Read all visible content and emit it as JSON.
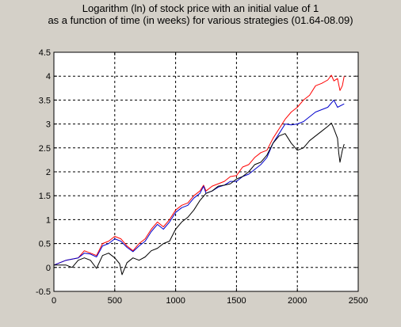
{
  "titles": {
    "line1": "Logarithm (ln) of stock price with an initial value of 1",
    "line2": "as a function of time (in weeks) for various strategies (01.64-08.09)"
  },
  "chart_data": {
    "type": "line",
    "title": "Logarithm (ln) of stock price with an initial value of 1 as a function of time (in weeks) for various strategies (01.64-08.09)",
    "xlabel": "",
    "ylabel": "",
    "xlim": [
      0,
      2500
    ],
    "ylim": [
      -0.5,
      4.5
    ],
    "xticks": [
      0,
      500,
      1000,
      1500,
      2000,
      2500
    ],
    "yticks": [
      -0.5,
      0,
      0.5,
      1,
      1.5,
      2,
      2.5,
      3,
      3.5,
      4,
      4.5
    ],
    "grid": true,
    "legend": "none",
    "background": "#ffffff",
    "frame_background": "#d4d0c8",
    "series": [
      {
        "color": "#ff0000",
        "x": [
          0,
          100,
          200,
          250,
          300,
          350,
          400,
          450,
          500,
          550,
          600,
          650,
          700,
          750,
          800,
          850,
          900,
          950,
          1000,
          1050,
          1100,
          1150,
          1200,
          1230,
          1250,
          1300,
          1350,
          1400,
          1450,
          1500,
          1550,
          1600,
          1650,
          1700,
          1750,
          1800,
          1850,
          1900,
          1950,
          2000,
          2050,
          2100,
          2150,
          2200,
          2250,
          2280,
          2300,
          2330,
          2350,
          2370,
          2385
        ],
        "y": [
          0.05,
          0.15,
          0.2,
          0.35,
          0.3,
          0.25,
          0.5,
          0.55,
          0.65,
          0.6,
          0.45,
          0.35,
          0.5,
          0.6,
          0.8,
          0.95,
          0.85,
          1.0,
          1.2,
          1.3,
          1.35,
          1.5,
          1.6,
          1.72,
          1.6,
          1.7,
          1.75,
          1.8,
          1.9,
          1.92,
          2.1,
          2.15,
          2.3,
          2.4,
          2.45,
          2.7,
          2.9,
          3.1,
          3.25,
          3.35,
          3.5,
          3.6,
          3.8,
          3.85,
          3.92,
          4.02,
          3.9,
          3.95,
          3.7,
          3.8,
          4.0
        ]
      },
      {
        "color": "#0000cc",
        "x": [
          0,
          100,
          200,
          250,
          300,
          350,
          400,
          450,
          500,
          550,
          600,
          650,
          700,
          750,
          800,
          850,
          900,
          950,
          1000,
          1050,
          1100,
          1150,
          1200,
          1230,
          1250,
          1300,
          1350,
          1400,
          1450,
          1500,
          1550,
          1600,
          1650,
          1700,
          1750,
          1800,
          1850,
          1900,
          1950,
          2000,
          2050,
          2100,
          2150,
          2200,
          2250,
          2300,
          2330,
          2385
        ],
        "y": [
          0.05,
          0.15,
          0.2,
          0.3,
          0.28,
          0.22,
          0.45,
          0.5,
          0.6,
          0.55,
          0.42,
          0.33,
          0.45,
          0.55,
          0.75,
          0.9,
          0.8,
          0.95,
          1.15,
          1.25,
          1.3,
          1.45,
          1.55,
          1.7,
          1.55,
          1.6,
          1.68,
          1.72,
          1.8,
          1.8,
          1.9,
          1.95,
          2.05,
          2.15,
          2.3,
          2.6,
          2.8,
          3.0,
          2.98,
          3.0,
          3.05,
          3.15,
          3.25,
          3.3,
          3.35,
          3.5,
          3.35,
          3.42
        ]
      },
      {
        "color": "#000000",
        "x": [
          0,
          100,
          150,
          200,
          250,
          300,
          350,
          400,
          450,
          500,
          540,
          560,
          600,
          650,
          700,
          750,
          800,
          850,
          900,
          950,
          1000,
          1050,
          1100,
          1150,
          1200,
          1250,
          1300,
          1350,
          1400,
          1450,
          1500,
          1550,
          1600,
          1650,
          1700,
          1750,
          1800,
          1850,
          1900,
          1950,
          2000,
          2050,
          2100,
          2150,
          2200,
          2250,
          2280,
          2300,
          2330,
          2340,
          2350,
          2370,
          2385
        ],
        "y": [
          0.05,
          0.05,
          0.0,
          0.15,
          0.2,
          0.15,
          -0.02,
          0.25,
          0.3,
          0.2,
          0.08,
          -0.15,
          0.1,
          0.2,
          0.15,
          0.22,
          0.35,
          0.4,
          0.5,
          0.55,
          0.8,
          0.95,
          1.05,
          1.2,
          1.4,
          1.55,
          1.6,
          1.7,
          1.72,
          1.75,
          1.85,
          1.9,
          2.0,
          2.15,
          2.2,
          2.35,
          2.6,
          2.75,
          2.8,
          2.6,
          2.45,
          2.5,
          2.65,
          2.75,
          2.85,
          2.95,
          3.02,
          2.9,
          2.7,
          2.4,
          2.2,
          2.45,
          2.58
        ]
      }
    ]
  }
}
